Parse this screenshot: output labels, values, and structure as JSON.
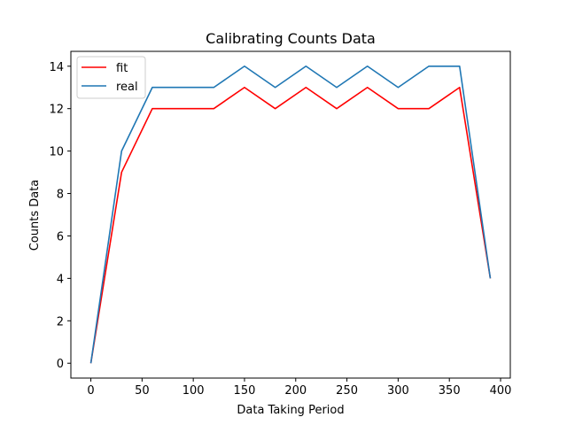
{
  "chart_data": {
    "type": "line",
    "title": "Calibrating Counts Data",
    "xlabel": "Data Taking Period",
    "ylabel": "Counts Data",
    "xlim": [
      -19.5,
      409.5
    ],
    "ylim": [
      -0.7,
      14.7
    ],
    "xticks": [
      0,
      50,
      100,
      150,
      200,
      250,
      300,
      350,
      400
    ],
    "yticks": [
      0,
      2,
      4,
      6,
      8,
      10,
      12,
      14
    ],
    "grid": false,
    "legend_position": "top-left",
    "x": [
      0,
      30,
      60,
      90,
      120,
      150,
      180,
      210,
      240,
      270,
      300,
      330,
      360,
      390
    ],
    "series": [
      {
        "name": "fit",
        "color": "#ff0000",
        "values": [
          0,
          9,
          12,
          12,
          12,
          13,
          12,
          13,
          12,
          13,
          12,
          12,
          13,
          4
        ]
      },
      {
        "name": "real",
        "color": "#1f77b4",
        "values": [
          0,
          10,
          13,
          13,
          13,
          14,
          13,
          14,
          13,
          14,
          13,
          14,
          14,
          4
        ]
      }
    ]
  }
}
